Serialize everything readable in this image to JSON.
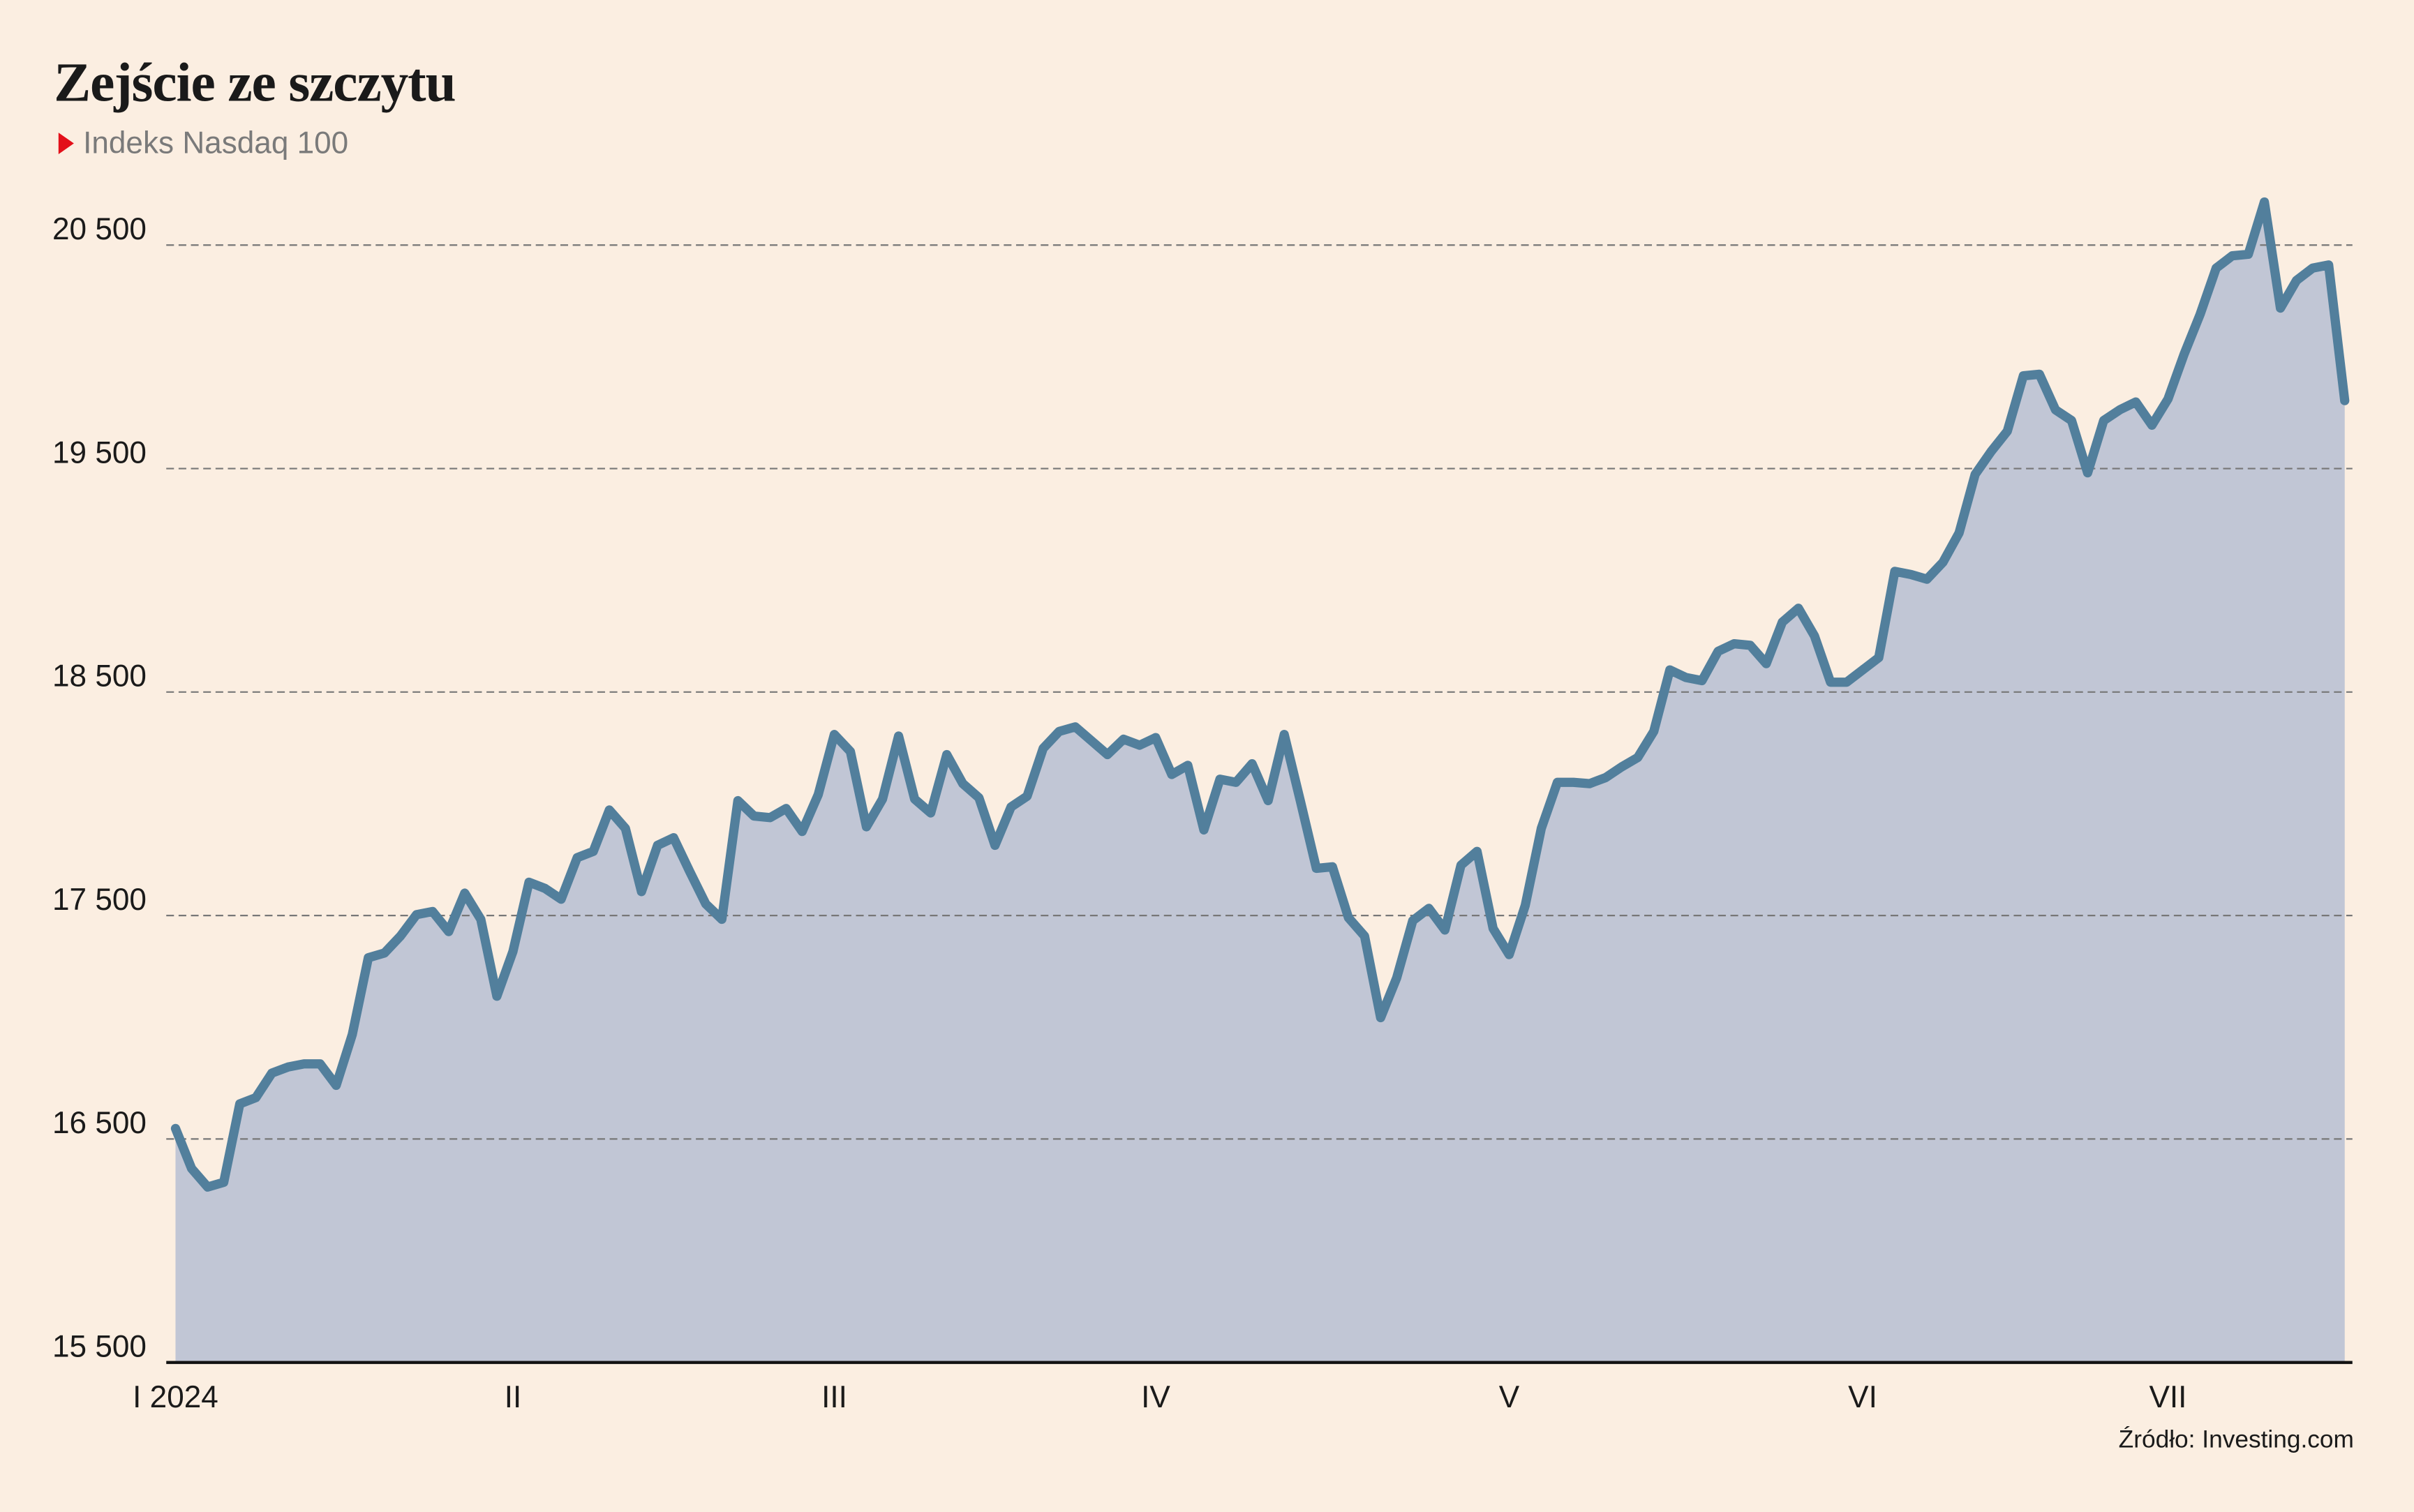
{
  "chart_data": {
    "type": "area",
    "title": "Zejście ze szczytu",
    "subtitle": "Indeks Nasdaq 100",
    "source": "Źródło: Investing.com",
    "categories": [
      "I 2024",
      null,
      null,
      null,
      null,
      null,
      null,
      null,
      null,
      null,
      null,
      null,
      null,
      null,
      null,
      null,
      null,
      null,
      null,
      null,
      null,
      "II",
      null,
      null,
      null,
      null,
      null,
      null,
      null,
      null,
      null,
      null,
      null,
      null,
      null,
      null,
      null,
      null,
      null,
      null,
      null,
      "III",
      null,
      null,
      null,
      null,
      null,
      null,
      null,
      null,
      null,
      null,
      null,
      null,
      null,
      null,
      null,
      null,
      null,
      null,
      null,
      "IV",
      null,
      null,
      null,
      null,
      null,
      null,
      null,
      null,
      null,
      null,
      null,
      null,
      null,
      null,
      null,
      null,
      null,
      null,
      null,
      null,
      null,
      "V",
      null,
      null,
      null,
      null,
      null,
      null,
      null,
      null,
      null,
      null,
      null,
      null,
      null,
      null,
      null,
      null,
      null,
      null,
      null,
      null,
      null,
      "VI",
      null,
      null,
      null,
      null,
      null,
      null,
      null,
      null,
      null,
      null,
      null,
      null,
      null,
      null,
      null,
      null,
      null,
      null,
      "VII",
      null,
      null,
      null,
      null,
      null,
      null,
      null,
      null,
      null,
      null,
      null
    ],
    "values": [
      16547,
      16368,
      16285,
      16306,
      16657,
      16685,
      16795,
      16822,
      16836,
      16836,
      16740,
      16967,
      17311,
      17332,
      17408,
      17504,
      17518,
      17428,
      17600,
      17483,
      17139,
      17339,
      17649,
      17621,
      17573,
      17759,
      17787,
      17972,
      17890,
      17607,
      17814,
      17848,
      17697,
      17552,
      17483,
      18014,
      17945,
      17938,
      17979,
      17876,
      18041,
      18310,
      18234,
      17897,
      18021,
      18303,
      18021,
      17959,
      18220,
      18090,
      18027,
      17814,
      17986,
      18034,
      18248,
      18324,
      18344,
      18282,
      18220,
      18289,
      18262,
      18296,
      18131,
      18172,
      17883,
      18110,
      18096,
      18179,
      18014,
      18310,
      18014,
      17711,
      17718,
      17490,
      17408,
      17043,
      17221,
      17477,
      17532,
      17435,
      17725,
      17787,
      17442,
      17325,
      17545,
      17890,
      18096,
      18096,
      18090,
      18117,
      18165,
      18207,
      18324,
      18599,
      18565,
      18551,
      18682,
      18716,
      18709,
      18627,
      18813,
      18875,
      18751,
      18544,
      18544,
      18599,
      18654,
      19040,
      19026,
      19005,
      19081,
      19212,
      19474,
      19577,
      19667,
      19915,
      19922,
      19763,
      19715,
      19481,
      19715,
      19763,
      19798,
      19694,
      19811,
      20011,
      20190,
      20397,
      20452,
      20459,
      20693,
      20218,
      20342,
      20397,
      20411,
      19804
    ],
    "color": "#527f9c",
    "fill_color": "#c1c6d5",
    "ylim": [
      15500,
      20900
    ],
    "yticks": [
      {
        "value": 15500,
        "label": "15 500"
      },
      {
        "value": 16500,
        "label": "16 500"
      },
      {
        "value": 17500,
        "label": "17 500"
      },
      {
        "value": 18500,
        "label": "18 500"
      },
      {
        "value": 19500,
        "label": "19 500"
      },
      {
        "value": 20500,
        "label": "20 500"
      }
    ],
    "grid": true
  }
}
